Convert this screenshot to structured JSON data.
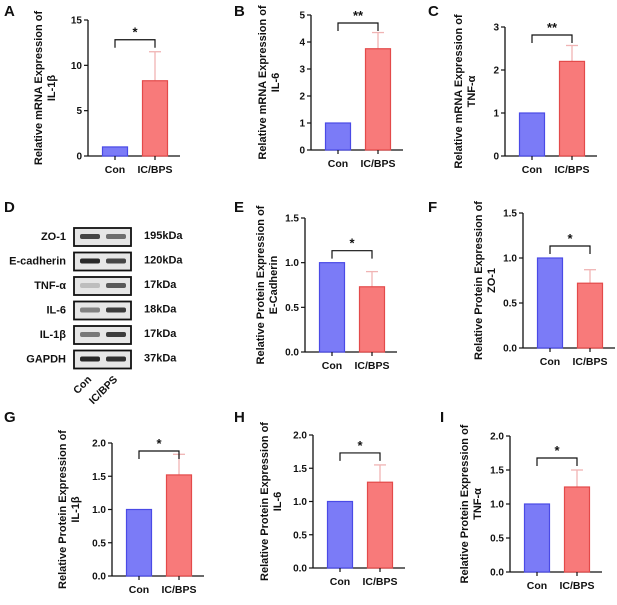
{
  "colors": {
    "con": "#7b7bf7",
    "con_edge": "#4a4ae6",
    "ic": "#f87a7a",
    "ic_edge": "#e34a4a",
    "err": "#f0b4b4"
  },
  "chart_data": [
    {
      "panel": "A",
      "type": "bar",
      "ylabel": [
        "Relative mRNA Expression of",
        "IL-1β"
      ],
      "categories": [
        "Con",
        "IC/BPS"
      ],
      "values": [
        1,
        8.3
      ],
      "errors": [
        0,
        3.2
      ],
      "ylim": [
        0,
        15
      ],
      "ticks": [
        "0",
        "5",
        "10",
        "15"
      ],
      "significance": "*"
    },
    {
      "panel": "B",
      "type": "bar",
      "ylabel": [
        "Relative mRNA Expression of",
        "IL-6"
      ],
      "categories": [
        "Con",
        "IC/BPS"
      ],
      "values": [
        1,
        3.75
      ],
      "errors": [
        0,
        0.6
      ],
      "ylim": [
        0,
        5
      ],
      "ticks": [
        "0",
        "1",
        "2",
        "3",
        "4",
        "5"
      ],
      "significance": "**"
    },
    {
      "panel": "C",
      "type": "bar",
      "ylabel": [
        "Relative mRNA Expression of",
        "TNF-α"
      ],
      "categories": [
        "Con",
        "IC/BPS"
      ],
      "values": [
        1,
        2.2
      ],
      "errors": [
        0,
        0.37
      ],
      "ylim": [
        0,
        3
      ],
      "ticks": [
        "0",
        "1",
        "2",
        "3"
      ],
      "significance": "**"
    },
    {
      "panel": "E",
      "type": "bar",
      "ylabel": [
        "Relative Protein Expression of",
        "E-Cadherin"
      ],
      "categories": [
        "Con",
        "IC/BPS"
      ],
      "values": [
        1,
        0.73
      ],
      "errors": [
        0,
        0.17
      ],
      "ylim": [
        0,
        1.5
      ],
      "ticks": [
        "0.0",
        "0.5",
        "1.0",
        "1.5"
      ],
      "significance": "*"
    },
    {
      "panel": "F",
      "type": "bar",
      "ylabel": [
        "Relative Protein Expression of",
        "ZO-1"
      ],
      "categories": [
        "Con",
        "IC/BPS"
      ],
      "values": [
        1,
        0.72
      ],
      "errors": [
        0,
        0.15
      ],
      "ylim": [
        0,
        1.5
      ],
      "ticks": [
        "0.0",
        "0.5",
        "1.0",
        "1.5"
      ],
      "significance": "*"
    },
    {
      "panel": "G",
      "type": "bar",
      "ylabel": [
        "Relative Protein Expression of",
        "IL-1β"
      ],
      "categories": [
        "Con",
        "IC/BPS"
      ],
      "values": [
        1,
        1.52
      ],
      "errors": [
        0,
        0.31
      ],
      "ylim": [
        0,
        2
      ],
      "ticks": [
        "0.0",
        "0.5",
        "1.0",
        "1.5",
        "2.0"
      ],
      "significance": "*"
    },
    {
      "panel": "H",
      "type": "bar",
      "ylabel": [
        "Relative Protein Expression of",
        "IL-6"
      ],
      "categories": [
        "Con",
        "IC/BPS"
      ],
      "values": [
        1,
        1.29
      ],
      "errors": [
        0,
        0.26
      ],
      "ylim": [
        0,
        2
      ],
      "ticks": [
        "0.0",
        "0.5",
        "1.0",
        "1.5",
        "2.0"
      ],
      "significance": "*"
    },
    {
      "panel": "I",
      "type": "bar",
      "ylabel": [
        "Relative Protein Expression of",
        "TNF-α"
      ],
      "categories": [
        "Con",
        "IC/BPS"
      ],
      "values": [
        1,
        1.25
      ],
      "errors": [
        0,
        0.25
      ],
      "ylim": [
        0,
        2
      ],
      "ticks": [
        "0.0",
        "0.5",
        "1.0",
        "1.5",
        "2.0"
      ],
      "significance": "*"
    }
  ],
  "blot": {
    "panel": "D",
    "rows": [
      {
        "protein": "ZO-1",
        "size": "195kDa",
        "band": [
          0.8,
          0.6
        ]
      },
      {
        "protein": "E-cadherin",
        "size": "120kDa",
        "band": [
          0.95,
          0.8
        ]
      },
      {
        "protein": "TNF-α",
        "size": "17kDa",
        "band": [
          0.2,
          0.7
        ]
      },
      {
        "protein": "IL-6",
        "size": "18kDa",
        "band": [
          0.5,
          0.85
        ]
      },
      {
        "protein": "IL-1β",
        "size": "17kDa",
        "band": [
          0.55,
          0.85
        ]
      },
      {
        "protein": "GAPDH",
        "size": "37kDa",
        "band": [
          0.95,
          0.9
        ]
      }
    ],
    "lanes": [
      "Con",
      "IC/BPS"
    ]
  }
}
